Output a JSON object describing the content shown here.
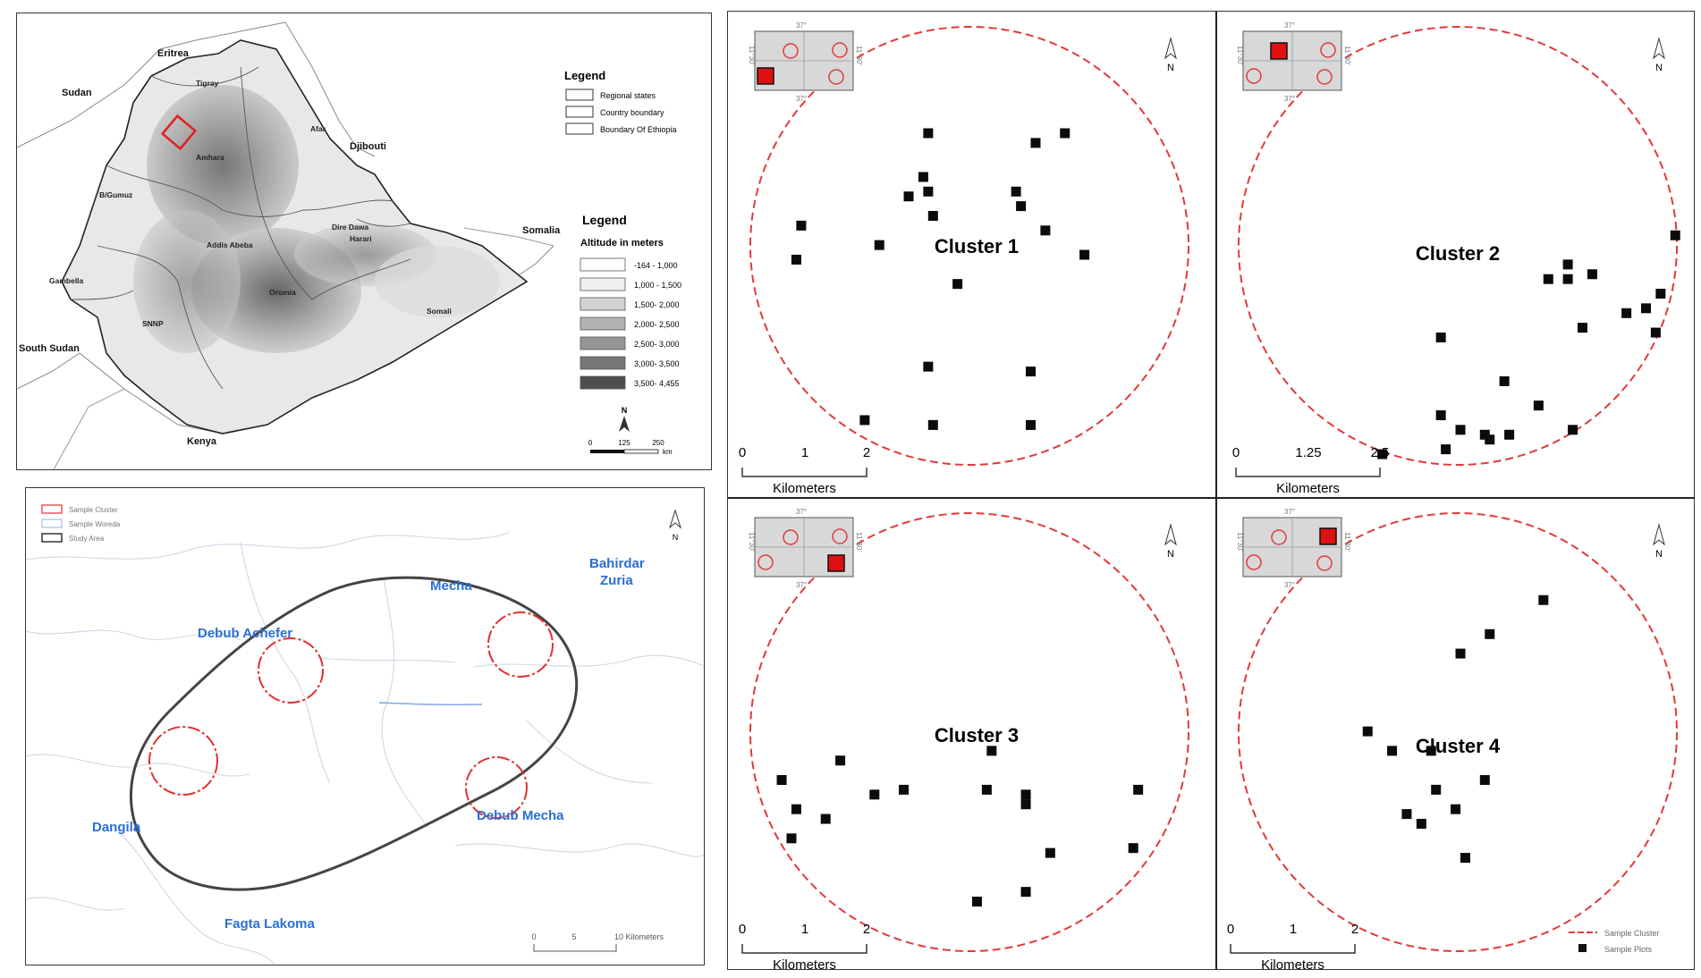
{
  "ethiopia_map": {
    "countries": {
      "eritrea": "Eritrea",
      "sudan": "Sudan",
      "djibouti": "Djibouti",
      "somalia": "Somalia",
      "south_sudan": "South Sudan",
      "kenya": "Kenya"
    },
    "regions": {
      "tigray": "Tigray",
      "afar": "Afar",
      "amhara": "Amhara",
      "bgumuz": "B/Gumuz",
      "addis": "Addis Abeba",
      "dire_dawa": "Dire Dawa",
      "harari": "Harari",
      "gambella": "Gambella",
      "oromia": "Oromia",
      "somali": "Somali",
      "snnp": "SNNP"
    },
    "legend1": {
      "title": "Legend",
      "items": [
        {
          "label": "Regional states"
        },
        {
          "label": "Country boundary"
        },
        {
          "label": "Boundary Of Ethiopia"
        }
      ]
    },
    "legend2": {
      "title": "Legend",
      "subtitle": "Altitude in meters",
      "items": [
        {
          "label": "-164 - 1,000",
          "color": "#ffffff"
        },
        {
          "label": "1,000 - 1,500",
          "color": "#f0f0f0"
        },
        {
          "label": "1,500- 2,000",
          "color": "#d2d2d2"
        },
        {
          "label": "2,000- 2,500",
          "color": "#b2b2b2"
        },
        {
          "label": "2,500- 3,000",
          "color": "#959595"
        },
        {
          "label": "3,000- 3,500",
          "color": "#767676"
        },
        {
          "label": "3,500- 4,455",
          "color": "#4e4e4e"
        }
      ]
    },
    "north": "N",
    "scale": {
      "ticks": [
        "0",
        "125",
        "250"
      ],
      "unit": "km"
    },
    "highlight_color": "#e02020"
  },
  "study_map": {
    "legend": [
      {
        "label": "Sample Cluster"
      },
      {
        "label": "Sample Woreda"
      },
      {
        "label": "Study Area"
      }
    ],
    "places": {
      "mecha": "Mecha",
      "bahirdar_zuria_1": "Bahirdar",
      "bahirdar_zuria_2": "Zuria",
      "debub_achefer": "Debub Achefer",
      "dangila": "Dangila",
      "debub_mecha": "Debub Mecha",
      "fagta_lakoma": "Fagta Lakoma"
    },
    "north": "N",
    "scale": {
      "ticks": [
        "0",
        "5",
        "10 Kilometers"
      ]
    },
    "cluster_color": "#e03030",
    "place_color": "#2a6fd4"
  },
  "cluster_panels": [
    {
      "title": "Cluster 1",
      "inset": {
        "lon": "37°",
        "lat": "11°30'"
      },
      "scale": {
        "ticks": [
          "0",
          "1",
          "2"
        ],
        "unit": "Kilometers"
      },
      "north": "N",
      "plots": [
        [
          0.41,
          0.25
        ],
        [
          0.63,
          0.27
        ],
        [
          0.69,
          0.25
        ],
        [
          0.4,
          0.34
        ],
        [
          0.41,
          0.37
        ],
        [
          0.37,
          0.38
        ],
        [
          0.42,
          0.42
        ],
        [
          0.59,
          0.37
        ],
        [
          0.6,
          0.4
        ],
        [
          0.73,
          0.5
        ],
        [
          0.15,
          0.44
        ],
        [
          0.14,
          0.51
        ],
        [
          0.31,
          0.48
        ],
        [
          0.65,
          0.45
        ],
        [
          0.47,
          0.56
        ],
        [
          0.41,
          0.73
        ],
        [
          0.42,
          0.85
        ],
        [
          0.62,
          0.74
        ],
        [
          0.62,
          0.85
        ],
        [
          0.28,
          0.84
        ]
      ]
    },
    {
      "title": "Cluster 2",
      "inset": {
        "lon": "37°",
        "lat": "11°30'"
      },
      "scale": {
        "ticks": [
          "0",
          "1.25",
          "2.5"
        ],
        "unit": "Kilometers"
      },
      "north": "N",
      "plots": [
        [
          0.94,
          0.46
        ],
        [
          0.72,
          0.52
        ],
        [
          0.68,
          0.55
        ],
        [
          0.72,
          0.55
        ],
        [
          0.77,
          0.54
        ],
        [
          0.91,
          0.58
        ],
        [
          0.88,
          0.61
        ],
        [
          0.84,
          0.62
        ],
        [
          0.9,
          0.66
        ],
        [
          0.75,
          0.65
        ],
        [
          0.46,
          0.67
        ],
        [
          0.59,
          0.76
        ],
        [
          0.46,
          0.83
        ],
        [
          0.5,
          0.86
        ],
        [
          0.55,
          0.87
        ],
        [
          0.56,
          0.88
        ],
        [
          0.6,
          0.87
        ],
        [
          0.66,
          0.81
        ],
        [
          0.73,
          0.86
        ],
        [
          0.47,
          0.9
        ],
        [
          0.34,
          0.91
        ]
      ]
    },
    {
      "title": "Cluster 3",
      "inset": {
        "lon": "37°",
        "lat": "11°30'"
      },
      "scale": {
        "ticks": [
          "0",
          "1",
          "2"
        ],
        "unit": "Kilometers"
      },
      "north": "N",
      "plots": [
        [
          0.23,
          0.54
        ],
        [
          0.11,
          0.58
        ],
        [
          0.2,
          0.66
        ],
        [
          0.3,
          0.61
        ],
        [
          0.36,
          0.6
        ],
        [
          0.54,
          0.52
        ],
        [
          0.53,
          0.6
        ],
        [
          0.61,
          0.63
        ],
        [
          0.61,
          0.61
        ],
        [
          0.84,
          0.6
        ],
        [
          0.66,
          0.73
        ],
        [
          0.83,
          0.72
        ],
        [
          0.61,
          0.81
        ],
        [
          0.51,
          0.83
        ],
        [
          0.13,
          0.7
        ],
        [
          0.14,
          0.64
        ]
      ]
    },
    {
      "title": "Cluster 4",
      "inset": {
        "lon": "37°",
        "lat": "11°30'"
      },
      "scale": {
        "ticks": [
          "0",
          "1",
          "2"
        ],
        "unit": "Kilometers"
      },
      "north": "N",
      "plots": [
        [
          0.67,
          0.21
        ],
        [
          0.56,
          0.28
        ],
        [
          0.5,
          0.32
        ],
        [
          0.31,
          0.48
        ],
        [
          0.36,
          0.52
        ],
        [
          0.44,
          0.52
        ],
        [
          0.45,
          0.6
        ],
        [
          0.55,
          0.58
        ],
        [
          0.39,
          0.65
        ],
        [
          0.49,
          0.64
        ],
        [
          0.42,
          0.67
        ],
        [
          0.51,
          0.74
        ]
      ]
    }
  ],
  "cluster_legend": [
    {
      "label": "Sample Cluster"
    },
    {
      "label": "Sample Plots"
    }
  ],
  "cluster_color": "#e03a3a"
}
